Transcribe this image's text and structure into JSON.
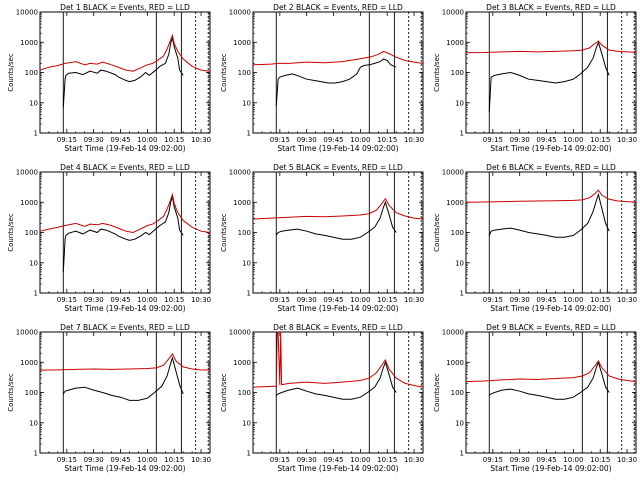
{
  "figure": {
    "panel_title_template": "Det {n} BLACK = Events, RED = LLD",
    "xlabel": "Start Time (19-Feb-14 09:02:00)",
    "ylabel": "Counts/sec",
    "x_tick_labels": [
      "09:15",
      "09:30",
      "09:45",
      "10:00",
      "10:15",
      "10:30"
    ],
    "y_tick_labels": [
      "1",
      "10",
      "100",
      "1000",
      "10000"
    ]
  },
  "chart_data": [
    {
      "type": "line",
      "panel": 1,
      "title": "Det 1 BLACK = Events, RED = LLD",
      "xlabel": "Start Time (19-Feb-14 09:02:00)",
      "ylabel": "Counts/sec",
      "x_unit": "minutes after 09:00",
      "xlim": [
        0,
        95
      ],
      "ylim": [
        1,
        10000
      ],
      "yscale": "log",
      "vlines": [
        13,
        65,
        79,
        87,
        94
      ],
      "series": [
        {
          "name": "Events",
          "color": "#000000",
          "x": [
            13,
            14,
            14.5,
            16,
            20,
            24,
            28,
            32,
            34,
            37,
            42,
            44,
            48,
            50,
            53,
            56,
            59,
            61,
            64,
            67,
            70,
            72,
            73,
            74,
            75,
            77,
            78,
            80
          ],
          "y": [
            7,
            60,
            80,
            95,
            100,
            85,
            110,
            95,
            120,
            110,
            85,
            70,
            55,
            50,
            55,
            70,
            100,
            80,
            110,
            160,
            200,
            400,
            900,
            1400,
            700,
            300,
            120,
            80
          ]
        },
        {
          "name": "LLD",
          "color": "#cc0000",
          "x": [
            0,
            5,
            10,
            14,
            20,
            25,
            28,
            32,
            35,
            40,
            45,
            48,
            52,
            56,
            60,
            63,
            66,
            69,
            71,
            73,
            74,
            75,
            77,
            80,
            85,
            90,
            95
          ],
          "y": [
            120,
            150,
            170,
            200,
            230,
            180,
            200,
            190,
            220,
            180,
            140,
            120,
            110,
            140,
            180,
            200,
            260,
            350,
            600,
            1200,
            1700,
            900,
            500,
            280,
            160,
            120,
            110
          ]
        }
      ]
    },
    {
      "type": "line",
      "panel": 2,
      "title": "Det 2 BLACK = Events, RED = LLD",
      "xlabel": "Start Time (19-Feb-14 09:02:00)",
      "ylabel": "Counts/sec",
      "x_unit": "minutes after 09:00",
      "xlim": [
        0,
        95
      ],
      "ylim": [
        1,
        10000
      ],
      "yscale": "log",
      "vlines": [
        13,
        65,
        79,
        87,
        94
      ],
      "series": [
        {
          "name": "Events",
          "color": "#000000",
          "x": [
            13,
            14,
            15,
            18,
            22,
            26,
            30,
            34,
            38,
            42,
            46,
            50,
            54,
            58,
            60,
            62,
            65,
            68,
            71,
            73,
            75,
            77,
            80
          ],
          "y": [
            8,
            60,
            70,
            80,
            90,
            75,
            60,
            55,
            50,
            45,
            45,
            50,
            60,
            90,
            150,
            170,
            180,
            200,
            230,
            280,
            250,
            180,
            150
          ]
        },
        {
          "name": "LLD",
          "color": "#cc0000",
          "x": [
            0,
            10,
            14,
            20,
            30,
            40,
            50,
            56,
            62,
            66,
            70,
            73,
            76,
            80,
            85,
            90,
            95
          ],
          "y": [
            180,
            190,
            200,
            200,
            220,
            210,
            230,
            260,
            300,
            330,
            400,
            500,
            420,
            320,
            250,
            220,
            200
          ]
        }
      ]
    },
    {
      "type": "line",
      "panel": 3,
      "title": "Det 3 BLACK = Events, RED = LLD",
      "xlabel": "Start Time (19-Feb-14 09:02:00)",
      "ylabel": "Counts/sec",
      "x_unit": "minutes after 09:00",
      "xlim": [
        0,
        95
      ],
      "ylim": [
        1,
        10000
      ],
      "yscale": "log",
      "vlines": [
        13,
        65,
        79,
        87,
        94
      ],
      "series": [
        {
          "name": "Events",
          "color": "#000000",
          "x": [
            13,
            14,
            16,
            20,
            25,
            30,
            35,
            40,
            45,
            50,
            55,
            60,
            64,
            68,
            71,
            73,
            74,
            76,
            78,
            80
          ],
          "y": [
            5,
            70,
            80,
            90,
            100,
            80,
            60,
            55,
            50,
            45,
            50,
            60,
            90,
            150,
            300,
            700,
            1000,
            400,
            150,
            80
          ]
        },
        {
          "name": "LLD",
          "color": "#cc0000",
          "x": [
            0,
            10,
            20,
            30,
            40,
            50,
            60,
            65,
            69,
            72,
            74,
            76,
            80,
            85,
            90,
            95
          ],
          "y": [
            450,
            460,
            480,
            500,
            480,
            500,
            520,
            550,
            650,
            900,
            1100,
            800,
            550,
            500,
            480,
            470
          ]
        }
      ]
    },
    {
      "type": "line",
      "panel": 4,
      "title": "Det 4 BLACK = Events, RED = LLD",
      "xlabel": "Start Time (19-Feb-14 09:02:00)",
      "ylabel": "Counts/sec",
      "x_unit": "minutes after 09:00",
      "xlim": [
        0,
        95
      ],
      "ylim": [
        1,
        10000
      ],
      "yscale": "log",
      "vlines": [
        13,
        65,
        79,
        87,
        94
      ],
      "series": [
        {
          "name": "Events",
          "color": "#000000",
          "x": [
            13,
            14,
            14.5,
            16,
            20,
            24,
            28,
            32,
            34,
            37,
            42,
            44,
            48,
            50,
            53,
            56,
            59,
            61,
            64,
            67,
            70,
            72,
            73,
            74,
            75,
            77,
            78,
            80
          ],
          "y": [
            5,
            60,
            80,
            95,
            110,
            90,
            120,
            100,
            130,
            120,
            90,
            75,
            60,
            55,
            60,
            75,
            100,
            85,
            120,
            170,
            220,
            450,
            1000,
            1500,
            700,
            300,
            120,
            80
          ]
        },
        {
          "name": "LLD",
          "color": "#cc0000",
          "x": [
            0,
            5,
            10,
            14,
            20,
            25,
            28,
            32,
            35,
            40,
            45,
            48,
            52,
            56,
            60,
            63,
            66,
            69,
            71,
            73,
            74,
            75,
            77,
            80,
            85,
            90,
            95
          ],
          "y": [
            110,
            130,
            150,
            170,
            200,
            160,
            190,
            180,
            200,
            170,
            130,
            110,
            100,
            130,
            170,
            190,
            250,
            340,
            600,
            1200,
            1800,
            900,
            450,
            250,
            150,
            110,
            100
          ]
        }
      ]
    },
    {
      "type": "line",
      "panel": 5,
      "title": "Det 5 BLACK = Events, RED = LLD",
      "xlabel": "Start Time (19-Feb-14 09:02:00)",
      "ylabel": "Counts/sec",
      "x_unit": "minutes after 09:00",
      "xlim": [
        0,
        95
      ],
      "ylim": [
        1,
        10000
      ],
      "yscale": "log",
      "vlines": [
        13,
        65,
        79,
        87,
        94
      ],
      "series": [
        {
          "name": "Events",
          "color": "#000000",
          "x": [
            13,
            14,
            16,
            20,
            25,
            30,
            35,
            40,
            45,
            50,
            55,
            60,
            64,
            68,
            71,
            73,
            74,
            76,
            78,
            80
          ],
          "y": [
            80,
            100,
            110,
            120,
            130,
            110,
            90,
            80,
            70,
            60,
            60,
            70,
            100,
            150,
            300,
            700,
            1000,
            400,
            150,
            100
          ]
        },
        {
          "name": "LLD",
          "color": "#cc0000",
          "x": [
            0,
            10,
            20,
            30,
            40,
            50,
            60,
            65,
            69,
            72,
            74,
            76,
            80,
            85,
            90,
            95
          ],
          "y": [
            280,
            300,
            320,
            340,
            330,
            350,
            380,
            420,
            550,
            900,
            1300,
            800,
            450,
            350,
            300,
            280
          ]
        }
      ]
    },
    {
      "type": "line",
      "panel": 6,
      "title": "Det 6 BLACK = Events, RED = LLD",
      "xlabel": "Start Time (19-Feb-14 09:02:00)",
      "ylabel": "Counts/sec",
      "x_unit": "minutes after 09:00",
      "xlim": [
        0,
        95
      ],
      "ylim": [
        1,
        10000
      ],
      "yscale": "log",
      "vlines": [
        13,
        65,
        79,
        87,
        94
      ],
      "series": [
        {
          "name": "Events",
          "color": "#000000",
          "x": [
            13,
            14,
            16,
            20,
            25,
            30,
            35,
            40,
            45,
            50,
            55,
            60,
            64,
            68,
            71,
            73,
            74,
            76,
            78,
            80
          ],
          "y": [
            80,
            110,
            120,
            130,
            140,
            120,
            100,
            90,
            80,
            70,
            70,
            80,
            120,
            200,
            500,
            1200,
            1800,
            600,
            200,
            110
          ]
        },
        {
          "name": "LLD",
          "color": "#cc0000",
          "x": [
            0,
            10,
            20,
            30,
            40,
            50,
            60,
            65,
            69,
            72,
            74,
            76,
            80,
            85,
            90,
            95
          ],
          "y": [
            1000,
            1020,
            1050,
            1080,
            1100,
            1120,
            1150,
            1200,
            1400,
            1900,
            2500,
            1700,
            1250,
            1100,
            1050,
            1000
          ]
        }
      ]
    },
    {
      "type": "line",
      "panel": 7,
      "title": "Det 7 BLACK = Events, RED = LLD",
      "xlabel": "Start Time (19-Feb-14 09:02:00)",
      "ylabel": "Counts/sec",
      "x_unit": "minutes after 09:00",
      "xlim": [
        0,
        95
      ],
      "ylim": [
        1,
        10000
      ],
      "yscale": "log",
      "vlines": [
        13,
        65,
        79,
        87,
        94
      ],
      "series": [
        {
          "name": "Events",
          "color": "#000000",
          "x": [
            13,
            14,
            16,
            20,
            25,
            30,
            35,
            40,
            45,
            50,
            55,
            60,
            64,
            68,
            71,
            73,
            74,
            76,
            78,
            80
          ],
          "y": [
            90,
            110,
            120,
            140,
            150,
            120,
            100,
            80,
            70,
            55,
            55,
            65,
            100,
            160,
            350,
            900,
            1400,
            500,
            180,
            90
          ]
        },
        {
          "name": "LLD",
          "color": "#cc0000",
          "x": [
            0,
            10,
            20,
            30,
            40,
            50,
            60,
            65,
            69,
            72,
            74,
            76,
            80,
            85,
            90,
            95
          ],
          "y": [
            550,
            560,
            580,
            600,
            580,
            600,
            620,
            650,
            800,
            1300,
            1900,
            1100,
            700,
            600,
            560,
            550
          ]
        }
      ]
    },
    {
      "type": "line",
      "panel": 8,
      "title": "Det 8 BLACK = Events, RED = LLD",
      "xlabel": "Start Time (19-Feb-14 09:02:00)",
      "ylabel": "Counts/sec",
      "x_unit": "minutes after 09:00",
      "xlim": [
        0,
        95
      ],
      "ylim": [
        1,
        10000
      ],
      "yscale": "log",
      "vlines": [
        13,
        65,
        79,
        87,
        94
      ],
      "series": [
        {
          "name": "Events",
          "color": "#000000",
          "x": [
            13,
            14,
            16,
            20,
            25,
            30,
            35,
            40,
            45,
            50,
            55,
            60,
            64,
            68,
            71,
            73,
            74,
            76,
            78,
            80
          ],
          "y": [
            80,
            90,
            100,
            120,
            140,
            110,
            90,
            80,
            70,
            60,
            60,
            70,
            100,
            150,
            300,
            700,
            1000,
            400,
            150,
            100
          ]
        },
        {
          "name": "LLD",
          "color": "#cc0000",
          "x": [
            0,
            12,
            13,
            13.5,
            14,
            15,
            15.5,
            16,
            20,
            30,
            40,
            50,
            60,
            65,
            69,
            72,
            74,
            76,
            80,
            85,
            90,
            95
          ],
          "y": [
            150,
            160,
            160,
            10000,
            10000,
            180,
            10000,
            180,
            200,
            220,
            200,
            220,
            250,
            300,
            450,
            800,
            1200,
            600,
            300,
            200,
            170,
            150
          ]
        }
      ]
    },
    {
      "type": "line",
      "panel": 9,
      "title": "Det 9 BLACK = Events, RED = LLD",
      "xlabel": "Start Time (19-Feb-14 09:02:00)",
      "ylabel": "Counts/sec",
      "x_unit": "minutes after 09:00",
      "xlim": [
        0,
        95
      ],
      "ylim": [
        1,
        10000
      ],
      "yscale": "log",
      "vlines": [
        13,
        65,
        79,
        87,
        94
      ],
      "series": [
        {
          "name": "Events",
          "color": "#000000",
          "x": [
            13,
            14,
            16,
            20,
            25,
            30,
            35,
            40,
            45,
            50,
            55,
            60,
            64,
            68,
            71,
            73,
            74,
            76,
            78,
            80
          ],
          "y": [
            80,
            90,
            100,
            120,
            130,
            110,
            90,
            80,
            70,
            60,
            60,
            70,
            100,
            150,
            300,
            700,
            1000,
            400,
            150,
            100
          ]
        },
        {
          "name": "LLD",
          "color": "#cc0000",
          "x": [
            0,
            10,
            20,
            30,
            40,
            50,
            60,
            65,
            69,
            72,
            74,
            76,
            80,
            85,
            90,
            95
          ],
          "y": [
            230,
            240,
            260,
            280,
            270,
            290,
            310,
            350,
            450,
            750,
            1100,
            650,
            350,
            280,
            250,
            230
          ]
        }
      ]
    }
  ]
}
